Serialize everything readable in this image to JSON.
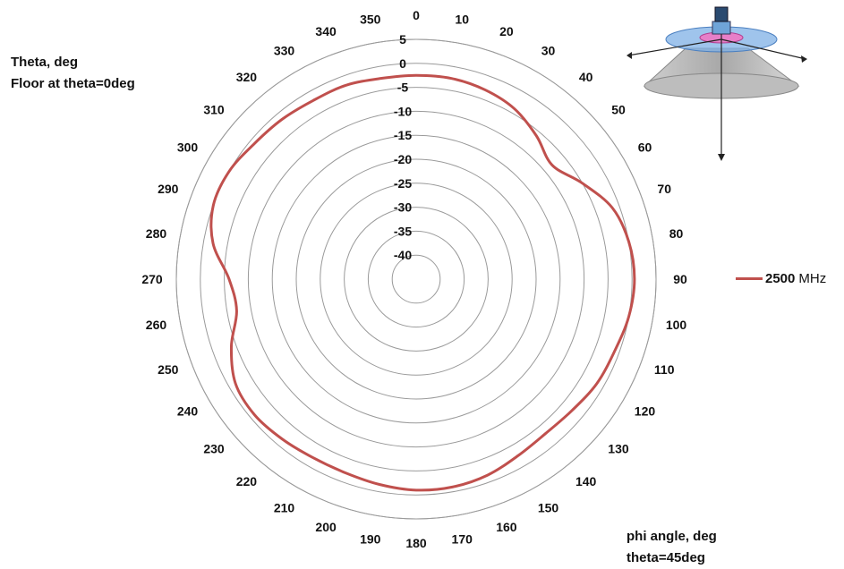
{
  "annotations": {
    "top_line1": "Theta, deg",
    "top_line2": "Floor at theta=0deg",
    "bottom_line1": "phi angle, deg",
    "bottom_line2": "theta=45deg"
  },
  "legend": {
    "value": "2500",
    "unit": "MHz"
  },
  "colors": {
    "series": "#c0504d",
    "grid": "#9a9a9a"
  },
  "chart_data": {
    "type": "polar-line",
    "angular_axis": {
      "ticks": [
        0,
        10,
        20,
        30,
        40,
        50,
        60,
        70,
        80,
        90,
        100,
        110,
        120,
        130,
        140,
        150,
        160,
        170,
        180,
        190,
        200,
        210,
        220,
        230,
        240,
        250,
        260,
        270,
        280,
        290,
        300,
        310,
        320,
        330,
        340,
        350
      ],
      "direction": "clockwise",
      "zero_at": "top"
    },
    "radial_axis": {
      "range": [
        -45,
        5
      ],
      "ticks": [
        5,
        0,
        -5,
        -10,
        -15,
        -20,
        -25,
        -30,
        -35,
        -40
      ]
    },
    "series": [
      {
        "name": "2500 MHz",
        "phi": [
          0,
          10,
          20,
          30,
          40,
          50,
          60,
          70,
          80,
          90,
          100,
          110,
          120,
          130,
          140,
          150,
          160,
          170,
          180,
          190,
          200,
          210,
          220,
          230,
          240,
          250,
          260,
          270,
          280,
          290,
          300,
          310,
          320,
          330,
          340,
          350,
          360
        ],
        "values": [
          -2.5,
          -2.5,
          -3,
          -4,
          -6,
          -8,
          -5,
          -1.5,
          0,
          0.5,
          0,
          -1,
          -1.5,
          -2.5,
          -3,
          -2.5,
          -1.5,
          -1,
          -1,
          -1.5,
          -2,
          -2,
          -1.5,
          -1,
          -1.5,
          -4,
          -7,
          -6,
          -2,
          0,
          0,
          -1,
          -1.5,
          -2,
          -2,
          -2.5,
          -2.5
        ]
      }
    ]
  }
}
